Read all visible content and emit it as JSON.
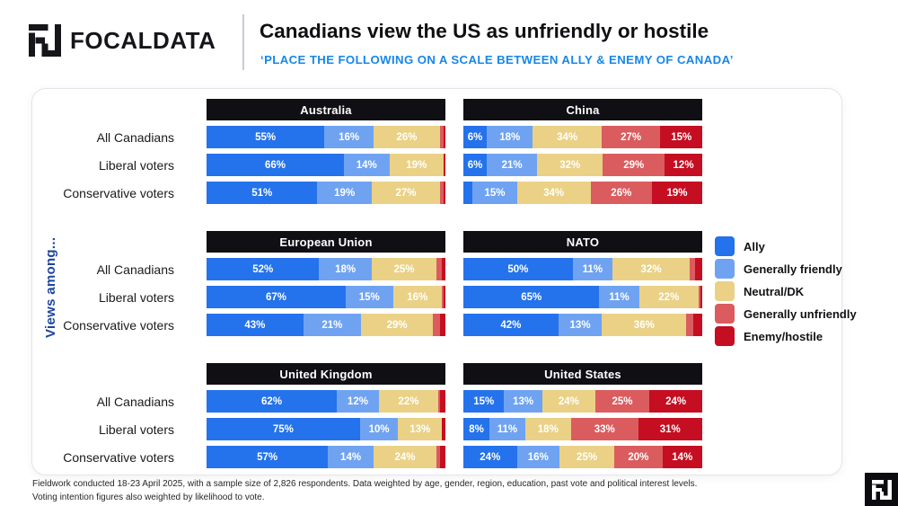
{
  "header": {
    "brand": "FOCALDATA",
    "title": "Canadians view the US as unfriendly or hostile",
    "subtitle": "‘PLACE THE FOLLOWING ON A SCALE BETWEEN ALLY & ENEMY OF CANADA’"
  },
  "side_label": "Views among...",
  "legend": [
    {
      "label": "Ally",
      "color": "#2472EC"
    },
    {
      "label": "Generally friendly",
      "color": "#6FA3F2"
    },
    {
      "label": "Neutral/DK",
      "color": "#EAD186"
    },
    {
      "label": "Generally unfriendly",
      "color": "#DB5C5E"
    },
    {
      "label": "Enemy/hostile",
      "color": "#C50E21"
    }
  ],
  "chart_data": {
    "type": "bar",
    "variant": "horizontal-stacked-100pct",
    "unit": "%",
    "legend_position": "right-middle",
    "grid_layout": "3 rows x 2 columns of panels",
    "row_labels": [
      "All Canadians",
      "Liberal voters",
      "Conservative voters"
    ],
    "series_names": [
      "Ally",
      "Generally friendly",
      "Neutral/DK",
      "Generally unfriendly",
      "Enemy/hostile"
    ],
    "panels": [
      {
        "title": "Australia",
        "rows": [
          {
            "values": [
              55,
              16,
              26,
              2,
              1
            ],
            "labels": [
              "55%",
              "16%",
              "26%",
              "",
              ""
            ]
          },
          {
            "values": [
              66,
              14,
              19,
              0,
              1
            ],
            "labels": [
              "66%",
              "14%",
              "19%",
              "",
              ""
            ]
          },
          {
            "values": [
              51,
              19,
              27,
              2,
              1
            ],
            "labels": [
              "51%",
              "19%",
              "27%",
              "",
              ""
            ]
          }
        ]
      },
      {
        "title": "China",
        "rows": [
          {
            "values": [
              6,
              18,
              34,
              27,
              15
            ],
            "labels": [
              "6%",
              "18%",
              "34%",
              "27%",
              "15%"
            ]
          },
          {
            "values": [
              6,
              21,
              32,
              29,
              12
            ],
            "labels": [
              "6%",
              "21%",
              "32%",
              "29%",
              "12%"
            ]
          },
          {
            "values": [
              6,
              15,
              34,
              26,
              19
            ],
            "labels": [
              "",
              "15%",
              "34%",
              "26%",
              "19%"
            ]
          }
        ]
      },
      {
        "title": "European Union",
        "rows": [
          {
            "values": [
              52,
              18,
              25,
              3,
              2
            ],
            "labels": [
              "52%",
              "18%",
              "25%",
              "",
              ""
            ]
          },
          {
            "values": [
              67,
              15,
              16,
              1,
              1
            ],
            "labels": [
              "67%",
              "15%",
              "16%",
              "",
              ""
            ]
          },
          {
            "values": [
              43,
              21,
              29,
              4,
              3
            ],
            "labels": [
              "43%",
              "21%",
              "29%",
              "",
              ""
            ]
          }
        ]
      },
      {
        "title": "NATO",
        "rows": [
          {
            "values": [
              50,
              11,
              32,
              3,
              4
            ],
            "labels": [
              "50%",
              "11%",
              "32%",
              "",
              ""
            ]
          },
          {
            "values": [
              65,
              11,
              22,
              1,
              1
            ],
            "labels": [
              "65%",
              "11%",
              "22%",
              "",
              ""
            ]
          },
          {
            "values": [
              42,
              13,
              36,
              4,
              5
            ],
            "labels": [
              "42%",
              "13%",
              "36%",
              "",
              ""
            ]
          }
        ]
      },
      {
        "title": "United Kingdom",
        "rows": [
          {
            "values": [
              62,
              12,
              22,
              1,
              3
            ],
            "labels": [
              "62%",
              "12%",
              "22%",
              "",
              ""
            ]
          },
          {
            "values": [
              75,
              10,
              13,
              0,
              2
            ],
            "labels": [
              "75%",
              "10%",
              "13%",
              "",
              ""
            ]
          },
          {
            "values": [
              57,
              14,
              24,
              2,
              3
            ],
            "labels": [
              "57%",
              "14%",
              "24%",
              "",
              ""
            ]
          }
        ]
      },
      {
        "title": "United States",
        "rows": [
          {
            "values": [
              15,
              13,
              24,
              25,
              24
            ],
            "labels": [
              "15%",
              "13%",
              "24%",
              "25%",
              "24%"
            ]
          },
          {
            "values": [
              8,
              11,
              18,
              33,
              31
            ],
            "labels": [
              "8%",
              "11%",
              "18%",
              "33%",
              "31%"
            ]
          },
          {
            "values": [
              24,
              16,
              25,
              20,
              14
            ],
            "labels": [
              "24%",
              "16%",
              "25%",
              "20%",
              "14%"
            ]
          }
        ]
      }
    ]
  },
  "footer": {
    "line1": "Fieldwork conducted 18-23 April 2025, with a sample size of 2,826 respondents. Data weighted by age, gender, region, education, past vote and political interest levels.",
    "line2": "Voting intention figures also weighted by likelihood to vote."
  }
}
